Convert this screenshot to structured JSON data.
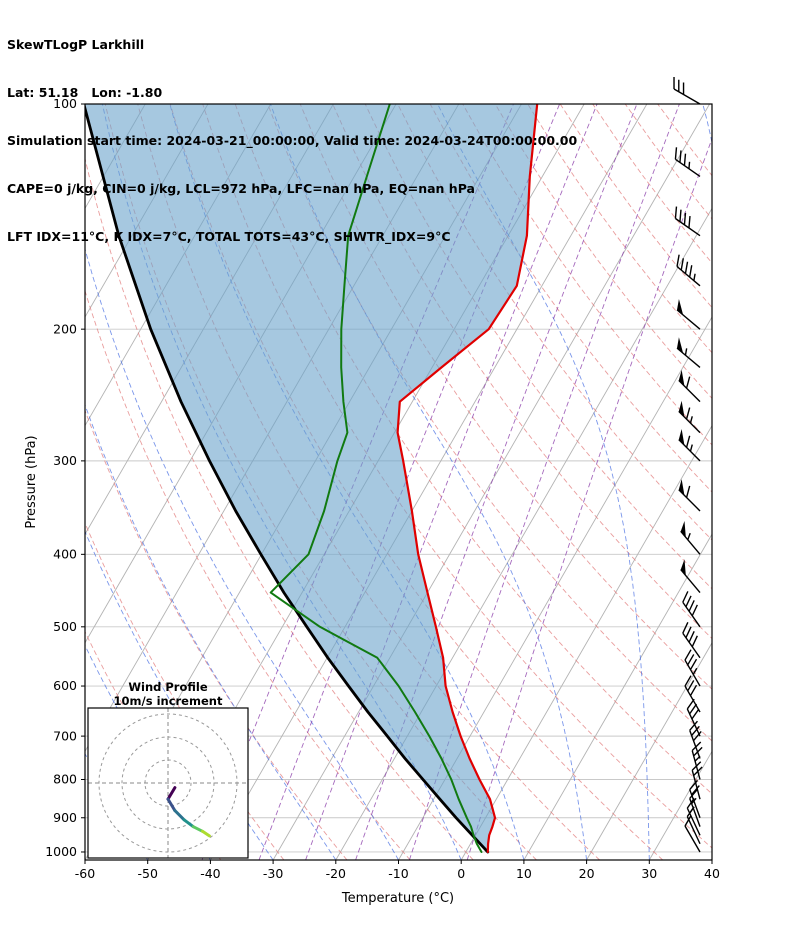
{
  "header": {
    "title": "SkewTLogP Larkhill",
    "lat_lon": "Lat: 51.18   Lon: -1.80",
    "times": "Simulation start time: 2024-03-21_00:00:00, Valid time: 2024-03-24T00:00:00.00",
    "indices1": "CAPE=0 j/kg, CIN=0 j/kg, LCL=972 hPa, LFC=nan hPa, EQ=nan hPa",
    "indices2": "LFT IDX=11°C, K IDX=7°C, TOTAL TOTS=43°C, SHWTR_IDX=9°C"
  },
  "chart_data": {
    "type": "skewt-logp",
    "title": "SkewTLogP Larkhill",
    "x_axis": {
      "label": "Temperature (°C)",
      "ticks": [
        -60,
        -50,
        -40,
        -30,
        -20,
        -10,
        0,
        10,
        20,
        30,
        40
      ],
      "range": [
        -60,
        40
      ]
    },
    "y_axis": {
      "label": "Pressure (hPa)",
      "ticks": [
        100,
        200,
        300,
        400,
        500,
        600,
        700,
        800,
        900,
        1000
      ],
      "range": [
        1025,
        100
      ],
      "scale": "log"
    },
    "skew_rotation_deg": 30,
    "series": [
      {
        "name": "temperature",
        "color": "#e00000",
        "pressure_hPa": [
          1000,
          975,
          950,
          925,
          900,
          850,
          800,
          750,
          700,
          650,
          600,
          550,
          500,
          450,
          400,
          350,
          300,
          275,
          250,
          225,
          200,
          175,
          150,
          125,
          100
        ],
        "temperature_C": [
          3.5,
          2.8,
          2.2,
          1.9,
          1.5,
          -1.0,
          -4.5,
          -8.0,
          -11.5,
          -15.0,
          -18.5,
          -21.5,
          -25.5,
          -30.0,
          -35.0,
          -40.0,
          -46.0,
          -49.5,
          -52.0,
          -48.5,
          -44.5,
          -44.0,
          -47.0,
          -52.0,
          -57.5
        ]
      },
      {
        "name": "dewpoint",
        "color": "#117a11",
        "pressure_hPa": [
          1000,
          975,
          950,
          925,
          900,
          850,
          800,
          750,
          700,
          650,
          600,
          550,
          500,
          450,
          400,
          350,
          300,
          275,
          250,
          225,
          200,
          175,
          150,
          125,
          100
        ],
        "temperature_C": [
          2.5,
          1.0,
          -0.3,
          -1.5,
          -3.0,
          -6.0,
          -9.0,
          -12.5,
          -16.5,
          -21.0,
          -26.0,
          -32.0,
          -44.0,
          -55.0,
          -52.5,
          -54.0,
          -56.5,
          -57.5,
          -61.0,
          -64.5,
          -68.0,
          -71.5,
          -75.5,
          -78.0,
          -81.0
        ]
      },
      {
        "name": "parcel",
        "color": "#000000",
        "pressure_hPa": [
          1000,
          950,
          900,
          850,
          800,
          750,
          700,
          650,
          600,
          550,
          500,
          450,
          400,
          350,
          300,
          250,
          200,
          150,
          100
        ],
        "temperature_C": [
          3.5,
          -0.5,
          -4.7,
          -9.0,
          -13.5,
          -18.3,
          -23.2,
          -28.5,
          -34.0,
          -39.9,
          -46.1,
          -52.9,
          -60.1,
          -68.1,
          -76.9,
          -86.9,
          -98.4,
          -112.1,
          -129.8
        ]
      }
    ],
    "shaded_area": {
      "between": [
        "parcel",
        "temperature"
      ],
      "color": "#6ba3cc",
      "opacity": 0.6
    },
    "reference_lines": {
      "isotherms": {
        "start": -160,
        "end": 40,
        "step": 10,
        "color": "#b3b3b3",
        "style": "solid"
      },
      "dry_adiabats": {
        "start": -40,
        "end": 180,
        "step": 10,
        "color": "#e27c7c",
        "style": "dashed"
      },
      "moist_adiabats": {
        "start": -60,
        "end": 40,
        "step": 10,
        "color": "#4169e1",
        "style": "dashed"
      },
      "mixing_ratio_g_kg": {
        "values": [
          0.1,
          0.25,
          0.5,
          1,
          2,
          4
        ],
        "color": "#8e44ad",
        "style": "dashed"
      }
    },
    "wind_barbs": {
      "pressure_hPa": [
        1000,
        975,
        950,
        925,
        900,
        850,
        800,
        750,
        700,
        650,
        600,
        550,
        500,
        450,
        400,
        350,
        300,
        275,
        250,
        225,
        200,
        175,
        150,
        125,
        100
      ],
      "speed_kt": [
        10,
        12,
        14,
        16,
        18,
        22,
        25,
        28,
        30,
        32,
        35,
        38,
        42,
        50,
        55,
        60,
        65,
        65,
        60,
        55,
        50,
        45,
        40,
        35,
        30
      ],
      "direction_deg": [
        330,
        335,
        335,
        340,
        340,
        345,
        345,
        340,
        335,
        330,
        330,
        325,
        325,
        320,
        320,
        315,
        315,
        315,
        315,
        310,
        310,
        310,
        305,
        305,
        300
      ]
    },
    "hodograph": {
      "title_line1": "Wind Profile",
      "title_line2": "10m/s increment",
      "ring_interval_ms": 10,
      "rings_ms": [
        10,
        20,
        30
      ],
      "trace_uv_ms": [
        [
          3,
          -2
        ],
        [
          0,
          -7
        ],
        [
          3,
          -12
        ],
        [
          7,
          -16
        ],
        [
          11,
          -19
        ],
        [
          15,
          -21
        ],
        [
          18,
          -23
        ]
      ],
      "segment_colors": [
        "#440154",
        "#3b528b",
        "#2c728e",
        "#21918c",
        "#5ec962",
        "#addc30"
      ]
    }
  }
}
